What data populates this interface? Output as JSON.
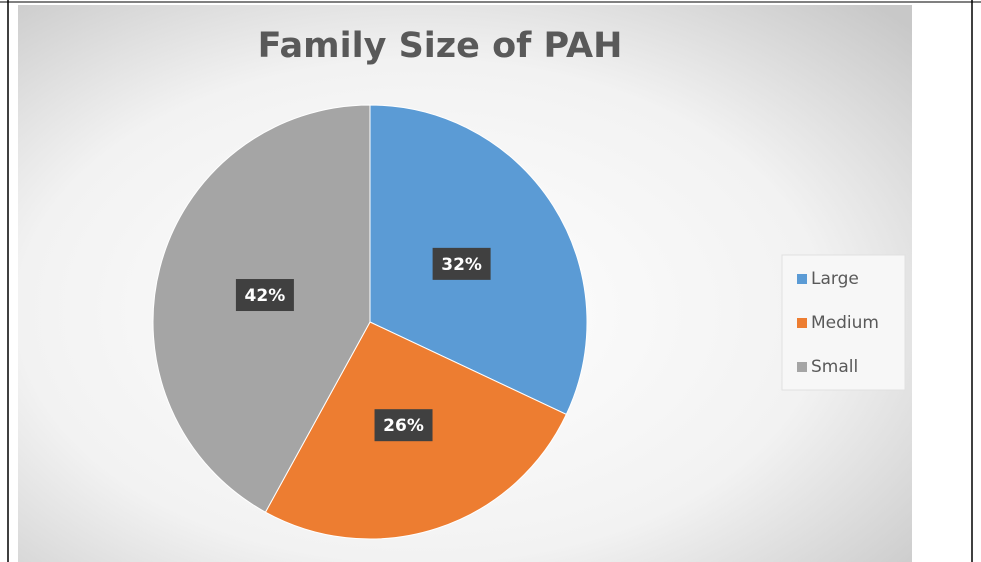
{
  "chart_data": {
    "type": "pie",
    "title": "Family Size of PAH",
    "categories": [
      "Large",
      "Medium",
      "Small"
    ],
    "values": [
      32,
      26,
      42
    ],
    "value_labels": [
      "32%",
      "26%",
      "42%"
    ],
    "colors": [
      "#5b9bd5",
      "#ed7d31",
      "#a5a5a5"
    ],
    "legend": "right"
  }
}
